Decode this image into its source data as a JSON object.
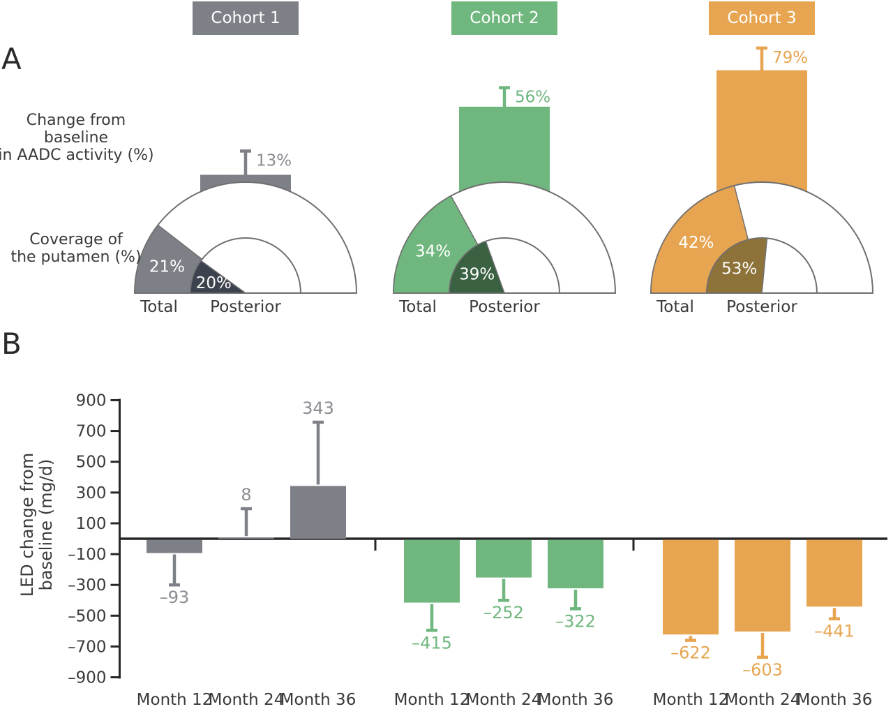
{
  "figure": {
    "panel_a_label": "A",
    "panel_b_label": "B",
    "aadc_row_label": [
      "Change from baseline",
      "in AADC activity (%)"
    ],
    "coverage_row_label": [
      "Coverage of",
      "the putamen (%)"
    ],
    "led_ylabel": [
      "LED change from",
      "baseline (mg/d)"
    ]
  },
  "gauge_axis": {
    "total_label": "Total",
    "posterior_label": "Posterior"
  },
  "b_axis": {
    "ticks": [
      900,
      700,
      500,
      300,
      100,
      -100,
      -300,
      -500,
      -700,
      -900
    ],
    "tick_labels": [
      "900",
      "700",
      "500",
      "300",
      "100",
      "–100",
      "–300",
      "–500",
      "–700",
      "–900"
    ]
  },
  "colors": {
    "axis": "#262626",
    "outline": "#6f6f6f",
    "text_dark": "#3a3a3a",
    "white": "#ffffff"
  },
  "cohorts": [
    {
      "label": "Cohort 1",
      "color": "#7e8088",
      "dark_color": "#3d434e",
      "value_label_color": "#8b8c92",
      "aadc": {
        "value": 13,
        "label": "13%",
        "error_to": 28
      },
      "coverage": {
        "total": 21,
        "total_label": "21%",
        "posterior": 20,
        "posterior_label": "20%"
      },
      "led": {
        "months": [
          "Month 12",
          "Month 24",
          "Month 36"
        ],
        "values": [
          -93,
          8,
          343
        ],
        "value_labels": [
          "–93",
          "8",
          "343"
        ],
        "error_to": [
          -300,
          195,
          757
        ]
      }
    },
    {
      "label": "Cohort 2",
      "color": "#6fb77e",
      "dark_color": "#3a6142",
      "value_label_color": "#6fb77e",
      "aadc": {
        "value": 56,
        "label": "56%",
        "error_to": 68
      },
      "coverage": {
        "total": 34,
        "total_label": "34%",
        "posterior": 39,
        "posterior_label": "39%"
      },
      "led": {
        "months": [
          "Month 12",
          "Month 24",
          "Month 36"
        ],
        "values": [
          -415,
          -252,
          -322
        ],
        "value_labels": [
          "–415",
          "–252",
          "–322"
        ],
        "error_to": [
          -595,
          -400,
          -455
        ]
      }
    },
    {
      "label": "Cohort 3",
      "color": "#e7a551",
      "dark_color": "#8d7239",
      "value_label_color": "#e7a551",
      "aadc": {
        "value": 79,
        "label": "79%",
        "error_to": 93
      },
      "coverage": {
        "total": 42,
        "total_label": "42%",
        "posterior": 53,
        "posterior_label": "53%"
      },
      "led": {
        "months": [
          "Month 12",
          "Month 24",
          "Month 36"
        ],
        "values": [
          -622,
          -603,
          -441
        ],
        "value_labels": [
          "–622",
          "–603",
          "–441"
        ],
        "error_to": [
          -660,
          -770,
          -520
        ]
      }
    }
  ],
  "chart_data": [
    {
      "type": "bar",
      "title": "Change from baseline in AADC activity (%)",
      "categories": [
        "Cohort 1",
        "Cohort 2",
        "Cohort 3"
      ],
      "values": [
        13,
        56,
        79
      ],
      "data_labels": [
        "13%",
        "56%",
        "79%"
      ],
      "error_whisker_to": [
        28,
        68,
        93
      ],
      "unit": "%"
    },
    {
      "type": "gauge",
      "title": "Coverage of the putamen (%)",
      "categories": [
        "Cohort 1",
        "Cohort 2",
        "Cohort 3"
      ],
      "series": [
        {
          "name": "Total",
          "values": [
            21,
            34,
            42
          ]
        },
        {
          "name": "Posterior",
          "values": [
            20,
            39,
            53
          ]
        }
      ],
      "unit": "%",
      "range": [
        0,
        100
      ]
    },
    {
      "type": "bar",
      "title": "LED change from baseline (mg/d)",
      "categories": [
        "Month 12",
        "Month 24",
        "Month 36"
      ],
      "series": [
        {
          "name": "Cohort 1",
          "values": [
            -93,
            8,
            343
          ],
          "error_whisker_to": [
            -300,
            195,
            757
          ]
        },
        {
          "name": "Cohort 2",
          "values": [
            -415,
            -252,
            -322
          ],
          "error_whisker_to": [
            -595,
            -400,
            -455
          ]
        },
        {
          "name": "Cohort 3",
          "values": [
            -622,
            -603,
            -441
          ],
          "error_whisker_to": [
            -660,
            -770,
            -520
          ]
        }
      ],
      "ylabel": "LED change from baseline (mg/d)",
      "ylim": [
        -900,
        900
      ],
      "yticks": [
        900,
        700,
        500,
        300,
        100,
        -100,
        -300,
        -500,
        -700,
        -900
      ],
      "grid": false,
      "legend": false
    }
  ]
}
